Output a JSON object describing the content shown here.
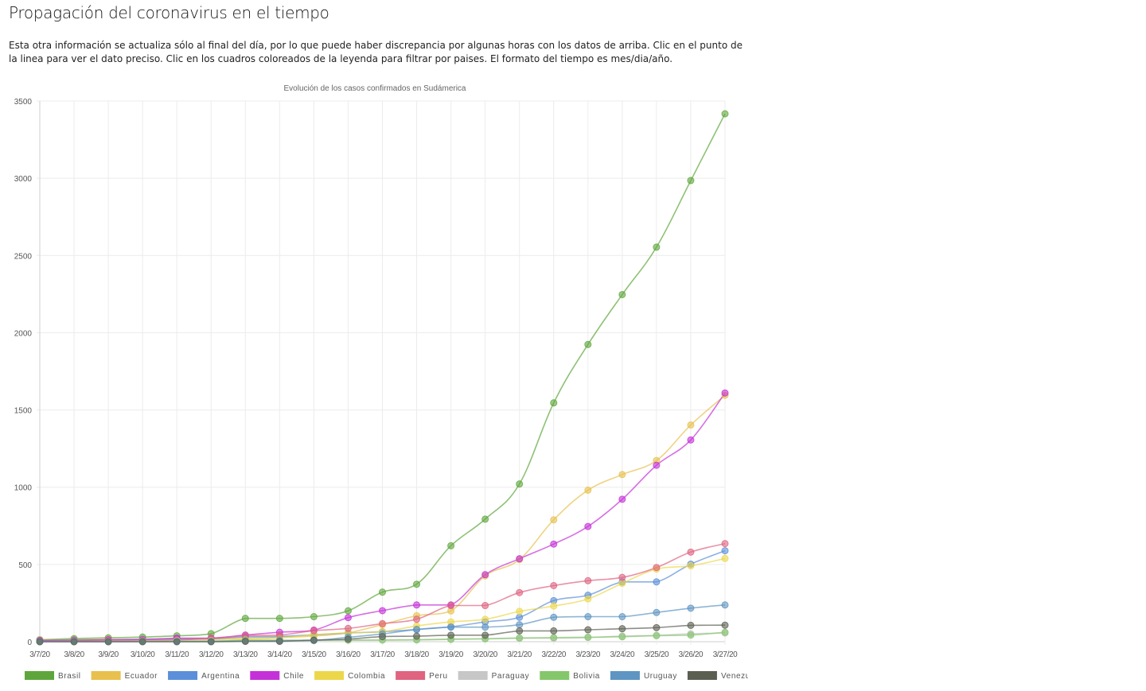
{
  "page": {
    "title": "Propagación del coronavirus en el tiempo",
    "intro": "Esta otra información se actualiza sólo al final del día, por lo que puede haber discrepancia por algunas horas con los datos de arriba. Clic en el punto de la linea para ver el dato preciso. Clic en los cuadros coloreados de la leyenda para filtrar por paises. El formato del tiempo es mes/dia/año."
  },
  "chart_data": {
    "type": "line",
    "title": "Evolución de los casos confirmados en Sudámerica",
    "xlabel": "",
    "ylabel": "",
    "ylim": [
      0,
      3500
    ],
    "yticks": [
      0,
      500,
      1000,
      1500,
      2000,
      2500,
      3000,
      3500
    ],
    "grid": true,
    "legend_position": "bottom",
    "categories": [
      "3/7/20",
      "3/8/20",
      "3/9/20",
      "3/10/20",
      "3/11/20",
      "3/12/20",
      "3/13/20",
      "3/14/20",
      "3/15/20",
      "3/16/20",
      "3/17/20",
      "3/18/20",
      "3/19/20",
      "3/20/20",
      "3/21/20",
      "3/22/20",
      "3/23/20",
      "3/24/20",
      "3/25/20",
      "3/26/20",
      "3/27/20"
    ],
    "series": [
      {
        "name": "Brasil",
        "color": "#5ea63b",
        "values": [
          13,
          20,
          25,
          30,
          38,
          52,
          151,
          151,
          162,
          200,
          321,
          372,
          621,
          793,
          1021,
          1546,
          1924,
          2247,
          2554,
          2985,
          3417
        ]
      },
      {
        "name": "Ecuador",
        "color": "#e8c04d",
        "values": [
          14,
          15,
          15,
          15,
          17,
          17,
          23,
          28,
          37,
          58,
          111,
          168,
          199,
          426,
          532,
          789,
          981,
          1082,
          1173,
          1403,
          1595
        ]
      },
      {
        "name": "Argentina",
        "color": "#5b8fd9",
        "values": [
          9,
          12,
          12,
          17,
          19,
          19,
          31,
          34,
          45,
          56,
          65,
          79,
          97,
          128,
          158,
          266,
          301,
          387,
          387,
          502,
          589
        ]
      },
      {
        "name": "Chile",
        "color": "#c531d8",
        "values": [
          7,
          7,
          13,
          13,
          23,
          23,
          43,
          61,
          75,
          156,
          201,
          238,
          238,
          434,
          537,
          632,
          746,
          922,
          1142,
          1306,
          1610
        ]
      },
      {
        "name": "Colombia",
        "color": "#ecd74a",
        "values": [
          0,
          0,
          1,
          3,
          9,
          9,
          16,
          24,
          45,
          57,
          65,
          102,
          128,
          145,
          196,
          231,
          277,
          378,
          470,
          491,
          539
        ]
      },
      {
        "name": "Peru",
        "color": "#e06380",
        "values": [
          1,
          6,
          7,
          11,
          11,
          22,
          38,
          43,
          71,
          86,
          117,
          145,
          234,
          234,
          318,
          363,
          395,
          416,
          480,
          580,
          635
        ]
      },
      {
        "name": "Paraguay",
        "color": "#c7c7c7",
        "values": [
          1,
          1,
          1,
          1,
          5,
          5,
          6,
          6,
          8,
          9,
          11,
          13,
          18,
          18,
          22,
          22,
          27,
          37,
          41,
          52,
          56
        ]
      },
      {
        "name": "Bolivia",
        "color": "#84c76a",
        "values": [
          0,
          0,
          0,
          2,
          3,
          3,
          10,
          10,
          10,
          11,
          11,
          12,
          15,
          19,
          24,
          27,
          29,
          32,
          39,
          43,
          61
        ]
      },
      {
        "name": "Uruguay",
        "color": "#5e95c2",
        "values": [
          0,
          0,
          0,
          0,
          0,
          0,
          4,
          6,
          8,
          29,
          50,
          79,
          94,
          94,
          110,
          158,
          162,
          162,
          189,
          217,
          238
        ]
      },
      {
        "name": "Venezuela",
        "color": "#5b5f52",
        "values": [
          0,
          0,
          0,
          0,
          0,
          0,
          2,
          2,
          10,
          17,
          33,
          36,
          42,
          42,
          70,
          70,
          77,
          84,
          91,
          106,
          107
        ]
      }
    ]
  }
}
